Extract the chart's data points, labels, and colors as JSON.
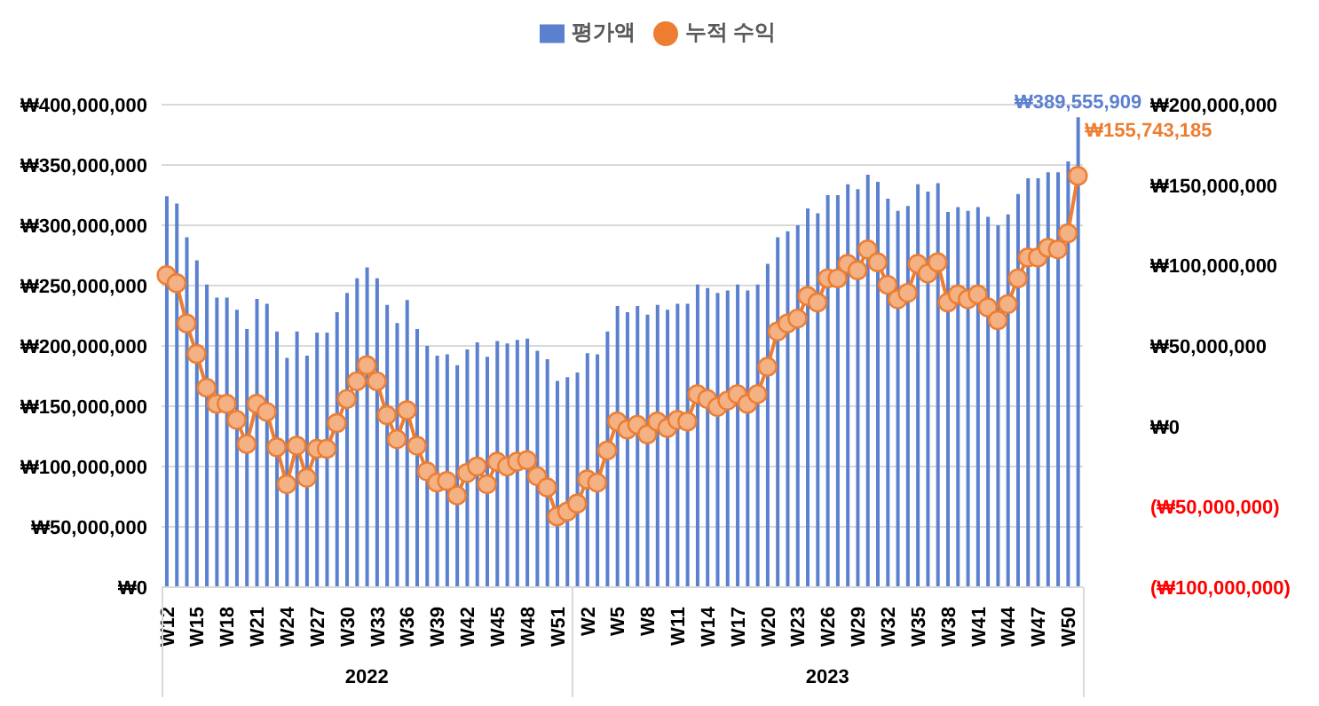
{
  "chart_data": {
    "type": "bar",
    "categories": [
      "W12",
      null,
      null,
      "W15",
      null,
      null,
      "W18",
      null,
      null,
      "W21",
      null,
      null,
      "W24",
      null,
      null,
      "W27",
      null,
      null,
      "W30",
      null,
      null,
      "W33",
      null,
      null,
      "W36",
      null,
      null,
      "W39",
      null,
      null,
      "W42",
      null,
      null,
      "W45",
      null,
      null,
      "W48",
      null,
      null,
      "W51",
      null,
      null,
      "W2",
      null,
      null,
      "W5",
      null,
      null,
      "W8",
      null,
      null,
      "W11",
      null,
      null,
      "W14",
      null,
      null,
      "W17",
      null,
      null,
      "W20",
      null,
      null,
      "W23",
      null,
      null,
      "W26",
      null,
      null,
      "W29",
      null,
      null,
      "W32",
      null,
      null,
      "W35",
      null,
      null,
      "W38",
      null,
      null,
      "W41",
      null,
      null,
      "W44",
      null,
      null,
      "W47",
      null,
      null,
      "W50",
      null
    ],
    "series": [
      {
        "name": "평가액",
        "color": "#5b80d0",
        "values": [
          324000000,
          318000000,
          290000000,
          271000000,
          251000000,
          240000000,
          240000000,
          230000000,
          214000000,
          239000000,
          235000000,
          212000000,
          190000000,
          212000000,
          192000000,
          211000000,
          211000000,
          228000000,
          244000000,
          256000000,
          265000000,
          256000000,
          234000000,
          219000000,
          238000000,
          214000000,
          200000000,
          192000000,
          193000000,
          184000000,
          197000000,
          203000000,
          191000000,
          204000000,
          202000000,
          205000000,
          206000000,
          196000000,
          189000000,
          171000000,
          174000000,
          178000000,
          194000000,
          193000000,
          212000000,
          233000000,
          228000000,
          233000000,
          226000000,
          234000000,
          230000000,
          235000000,
          235000000,
          251000000,
          248000000,
          244000000,
          246000000,
          251000000,
          246000000,
          251000000,
          268000000,
          290000000,
          295000000,
          300000000,
          314000000,
          310000000,
          325000000,
          325000000,
          334000000,
          330000000,
          342000000,
          336000000,
          322000000,
          312000000,
          316000000,
          334000000,
          328000000,
          335000000,
          311000000,
          315000000,
          312000000,
          315000000,
          307000000,
          300000000,
          309000000,
          326000000,
          339000000,
          339000000,
          344000000,
          344000000,
          353000000,
          389555909
        ],
        "value_labels": [
          null,
          null,
          null,
          null,
          null,
          null,
          null,
          null,
          null,
          null,
          null,
          null,
          null,
          null,
          null,
          null,
          null,
          null,
          null,
          null,
          null,
          null,
          null,
          null,
          null,
          null,
          null,
          null,
          null,
          null,
          null,
          null,
          null,
          null,
          null,
          null,
          null,
          null,
          null,
          null,
          null,
          null,
          null,
          null,
          null,
          null,
          null,
          null,
          null,
          null,
          null,
          null,
          null,
          null,
          null,
          null,
          null,
          null,
          null,
          null,
          null,
          null,
          null,
          null,
          null,
          null,
          null,
          null,
          null,
          null,
          null,
          null,
          null,
          null,
          null,
          null,
          null,
          null,
          null,
          null,
          null,
          null,
          null,
          null,
          null,
          null,
          null,
          null,
          null,
          null,
          null,
          "₩389,555,909"
        ]
      },
      {
        "name": "누적 수익",
        "type": "line",
        "axis": "y2",
        "color": "#ed7d31",
        "values": [
          94000000,
          89000000,
          64000000,
          45000000,
          24000000,
          14000000,
          14000000,
          4000000,
          -11000000,
          14000000,
          9000000,
          -13000000,
          -36000000,
          -12000000,
          -32000000,
          -14000000,
          -14000000,
          2000000,
          17000000,
          28000000,
          38000000,
          28000000,
          7000000,
          -8000000,
          10000000,
          -12000000,
          -28000000,
          -35000000,
          -34000000,
          -43000000,
          -29000000,
          -25000000,
          -36000000,
          -22000000,
          -25000000,
          -22000000,
          -21000000,
          -31000000,
          -38000000,
          -56000000,
          -53000000,
          -48000000,
          -33000000,
          -35000000,
          -15000000,
          3000000,
          -2000000,
          1000000,
          -5000000,
          3000000,
          -1000000,
          4000000,
          3000000,
          20000000,
          17000000,
          12000000,
          16000000,
          20000000,
          14000000,
          20000000,
          37000000,
          59000000,
          64000000,
          67000000,
          81000000,
          77000000,
          92000000,
          92000000,
          101000000,
          97000000,
          110000000,
          102000000,
          88000000,
          79000000,
          83000000,
          101000000,
          95000000,
          102000000,
          77000000,
          82000000,
          79000000,
          82000000,
          74000000,
          66000000,
          76000000,
          92000000,
          105000000,
          105000000,
          111000000,
          110000000,
          120000000,
          155743185
        ],
        "value_labels": [
          null,
          null,
          null,
          null,
          null,
          null,
          null,
          null,
          null,
          null,
          null,
          null,
          null,
          null,
          null,
          null,
          null,
          null,
          null,
          null,
          null,
          null,
          null,
          null,
          null,
          null,
          null,
          null,
          null,
          null,
          null,
          null,
          null,
          null,
          null,
          null,
          null,
          null,
          null,
          null,
          null,
          null,
          null,
          null,
          null,
          null,
          null,
          null,
          null,
          null,
          null,
          null,
          null,
          null,
          null,
          null,
          null,
          null,
          null,
          null,
          null,
          null,
          null,
          null,
          null,
          null,
          null,
          null,
          null,
          null,
          null,
          null,
          null,
          null,
          null,
          null,
          null,
          null,
          null,
          null,
          null,
          null,
          null,
          null,
          null,
          null,
          null,
          null,
          null,
          null,
          null,
          "₩155,743,185"
        ]
      }
    ],
    "ylim": [
      0,
      400000000
    ],
    "yticks": [
      {
        "value": 0,
        "label": "₩0"
      },
      {
        "value": 50000000,
        "label": "₩50,000,000"
      },
      {
        "value": 100000000,
        "label": "₩100,000,000"
      },
      {
        "value": 150000000,
        "label": "₩150,000,000"
      },
      {
        "value": 200000000,
        "label": "₩200,000,000"
      },
      {
        "value": 250000000,
        "label": "₩250,000,000"
      },
      {
        "value": 300000000,
        "label": "₩300,000,000"
      },
      {
        "value": 350000000,
        "label": "₩350,000,000"
      },
      {
        "value": 400000000,
        "label": "₩400,000,000"
      }
    ],
    "y2lim": [
      -100000000,
      200000000
    ],
    "y2ticks": [
      {
        "value": -100000000,
        "label": "(₩100,000,000)"
      },
      {
        "value": -50000000,
        "label": "(₩50,000,000)"
      },
      {
        "value": 0,
        "label": "₩0"
      },
      {
        "value": 50000000,
        "label": "₩50,000,000"
      },
      {
        "value": 100000000,
        "label": "₩100,000,000"
      },
      {
        "value": 150000000,
        "label": "₩150,000,000"
      },
      {
        "value": 200000000,
        "label": "₩200,000,000"
      }
    ],
    "annotations": [
      "2022",
      "2023"
    ],
    "grid": "y",
    "legend": "top",
    "marker": "circle"
  }
}
